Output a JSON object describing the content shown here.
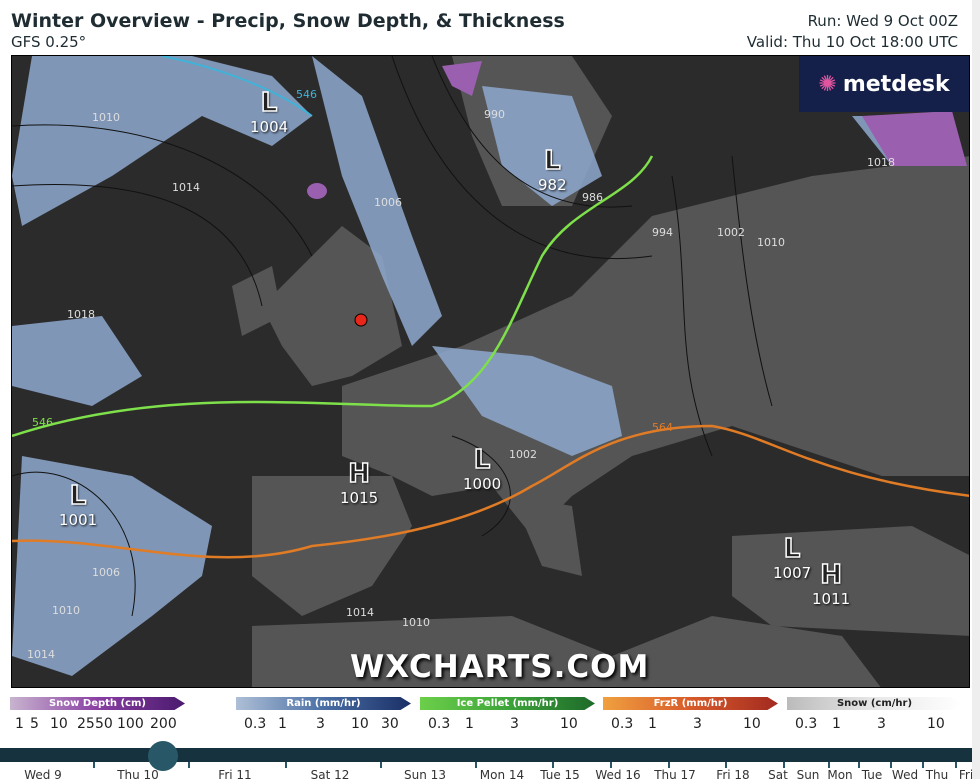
{
  "header": {
    "title": "Winter Overview - Precip, Snow Depth, & Thickness",
    "model": "GFS 0.25°",
    "run": "Run: Wed 9 Oct 00Z",
    "valid": "Valid: Thu 10 Oct 18:00 UTC"
  },
  "map": {
    "logo": "metdesk",
    "watermark": "WXCHARTS.COM",
    "colors": {
      "sea": "#2b2b2b",
      "land": "#555555",
      "rain": "#8ea9cf",
      "snow_depth": "#9b5fb0",
      "thickness_546": "#7ee04a",
      "thickness_564": "#e07b26",
      "location_marker": "#e8261a"
    },
    "pressure_centers": [
      {
        "type": "L",
        "value": "1004"
      },
      {
        "type": "L",
        "value": "982"
      },
      {
        "type": "H",
        "value": "1015"
      },
      {
        "type": "L",
        "value": "1000"
      },
      {
        "type": "L",
        "value": "1001"
      },
      {
        "type": "L",
        "value": "1007"
      },
      {
        "type": "H",
        "value": "1011"
      }
    ],
    "contour_labels": [
      "1010",
      "1014",
      "1018",
      "990",
      "1006",
      "986",
      "994",
      "1002",
      "1010",
      "1018",
      "546",
      "546",
      "1002",
      "1014",
      "1010",
      "1006",
      "1010",
      "1014",
      "564"
    ]
  },
  "legend": [
    {
      "label": "Snow Depth (cm)",
      "ticks": [
        "1",
        "5",
        "10",
        "25",
        "50",
        "100",
        "200"
      ],
      "gradient": "linear-gradient(90deg,#c8b4cf,#8a3fa3,#4a1a6e)"
    },
    {
      "label": "Rain (mm/hr)",
      "ticks": [
        "0.3",
        "1",
        "3",
        "10",
        "30"
      ],
      "gradient": "linear-gradient(90deg,#aebfd6,#4a6fa5,#1a2f66)"
    },
    {
      "label": "Ice Pellet (mm/hr)",
      "ticks": [
        "0.3",
        "1",
        "3",
        "10"
      ],
      "gradient": "linear-gradient(90deg,#6ccf4a,#3da43a,#1e6a2a)"
    },
    {
      "label": "FrzR (mm/hr)",
      "ticks": [
        "0.3",
        "1",
        "3",
        "10"
      ],
      "gradient": "linear-gradient(90deg,#f0a040,#d85b2a,#a22a20)"
    },
    {
      "label": "Snow (cm/hr)",
      "ticks": [
        "0.3",
        "1",
        "3",
        "10"
      ],
      "gradient": "linear-gradient(90deg,#bbbbbb,#e8e8e8,#ffffff)"
    }
  ],
  "timeline": {
    "selected": "Thu 10",
    "days": [
      "Wed 9",
      "Thu 10",
      "Fri 11",
      "Sat 12",
      "Sun 13",
      "Mon 14",
      "Tue 15",
      "Wed 16",
      "Thu 17",
      "Fri 18",
      "Sat",
      "Sun",
      "Mon",
      "Tue",
      "Wed",
      "Thu",
      "Fri"
    ]
  }
}
